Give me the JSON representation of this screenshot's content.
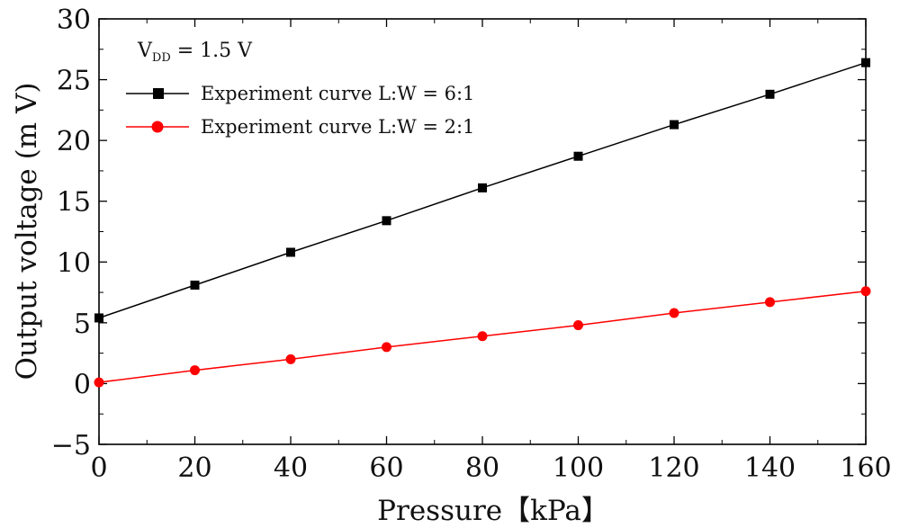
{
  "chart_data": {
    "type": "line",
    "title": "",
    "xlabel": "Pressure【kPa】",
    "ylabel": "Output voltage (m V)",
    "xlim": [
      0,
      160
    ],
    "ylim": [
      -5,
      30
    ],
    "xticks": [
      0,
      20,
      40,
      60,
      80,
      100,
      120,
      140,
      160
    ],
    "yticks": [
      -5,
      0,
      5,
      10,
      15,
      20,
      25,
      30
    ],
    "xtick_labels": [
      "0",
      "20",
      "40",
      "60",
      "80",
      "100",
      "120",
      "140",
      "160"
    ],
    "ytick_labels": [
      "−5",
      "0",
      "5",
      "10",
      "15",
      "20",
      "25",
      "30"
    ],
    "grid": false,
    "legend_position": "top-left",
    "annotation": {
      "main": "V",
      "sub": "DD",
      "rest": " = 1.5 V"
    },
    "series": [
      {
        "name": "Experiment curve  L:W = 6:1",
        "color": "#000000",
        "marker": "square",
        "x": [
          0,
          20,
          40,
          60,
          80,
          100,
          120,
          140,
          160
        ],
        "y": [
          5.4,
          8.1,
          10.8,
          13.4,
          16.1,
          18.7,
          21.3,
          23.8,
          26.4
        ]
      },
      {
        "name": "Experiment curve  L:W = 2:1",
        "color": "#ff0000",
        "marker": "circle",
        "x": [
          0,
          20,
          40,
          60,
          80,
          100,
          120,
          140,
          160
        ],
        "y": [
          0.1,
          1.1,
          2.0,
          3.0,
          3.9,
          4.8,
          5.8,
          6.7,
          7.6
        ]
      }
    ]
  }
}
